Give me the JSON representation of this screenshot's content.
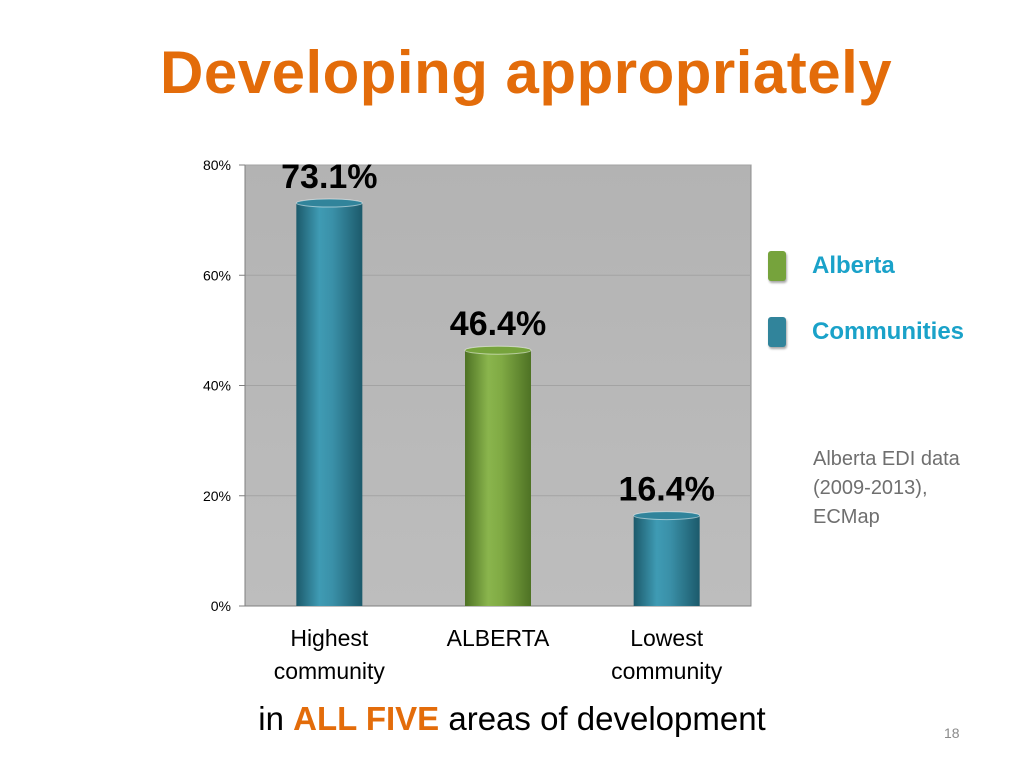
{
  "slide": {
    "title": "Developing appropriately",
    "footer_prefix": "in ",
    "footer_emphasis": "ALL FIVE",
    "footer_suffix": " areas of development",
    "page_number": "18",
    "source_note": "Alberta EDI data (2009-2013), ECMap"
  },
  "legend": [
    {
      "label": "Alberta",
      "color": "#76a33c"
    },
    {
      "label": "Communities",
      "color": "#31849b"
    }
  ],
  "chart_data": {
    "type": "bar",
    "categories": [
      "Highest\ncommunity",
      "ALBERTA",
      "Lowest\ncommunity"
    ],
    "values": [
      73.1,
      46.4,
      16.4
    ],
    "data_labels": [
      "73.1%",
      "46.4%",
      "16.4%"
    ],
    "bar_series": [
      "Communities",
      "Alberta",
      "Communities"
    ],
    "colors": {
      "Alberta": "#76a33c",
      "Communities": "#31849b",
      "plot_background": "#b7b7b7"
    },
    "ylim": [
      0,
      80
    ],
    "yticks": [
      0,
      20,
      40,
      60,
      80
    ],
    "ytick_labels": [
      "0%",
      "20%",
      "40%",
      "60%",
      "80%"
    ],
    "title": "",
    "xlabel": "",
    "ylabel": "",
    "grid": true,
    "legend_position": "right"
  }
}
